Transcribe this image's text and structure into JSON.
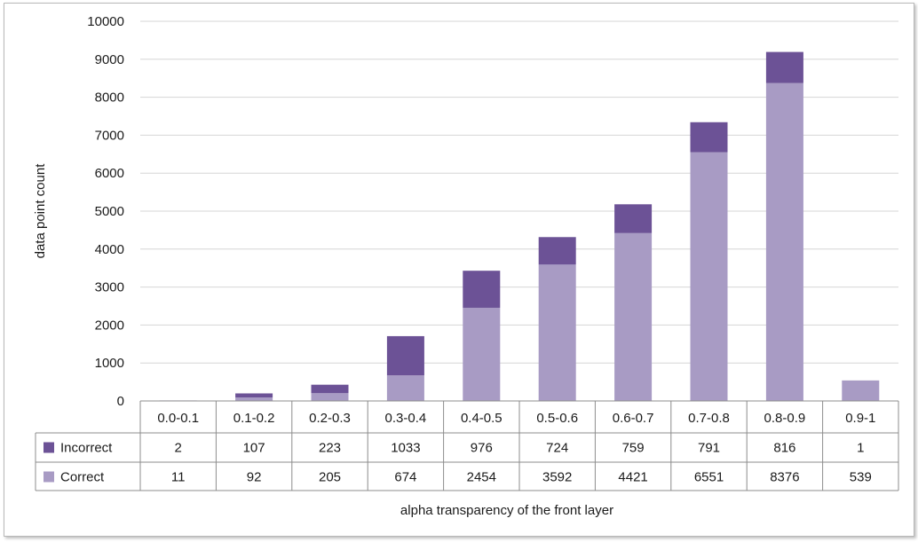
{
  "chart_data": {
    "type": "bar",
    "stacked": true,
    "categories": [
      "0.0-0.1",
      "0.1-0.2",
      "0.2-0.3",
      "0.3-0.4",
      "0.4-0.5",
      "0.5-0.6",
      "0.6-0.7",
      "0.7-0.8",
      "0.8-0.9",
      "0.9-1"
    ],
    "series": [
      {
        "name": "Correct",
        "values": [
          11,
          92,
          205,
          674,
          2454,
          3592,
          4421,
          6551,
          8376,
          539
        ],
        "color": "#a89bc4"
      },
      {
        "name": "Incorrect",
        "values": [
          2,
          107,
          223,
          1033,
          976,
          724,
          759,
          791,
          816,
          1
        ],
        "color": "#6c5296"
      }
    ],
    "table_rows": [
      "Incorrect",
      "Correct"
    ],
    "xlabel": "alpha transparency of the front layer",
    "ylabel": "data point count",
    "ylim": [
      0,
      10000
    ],
    "yticks": [
      "0",
      "1000",
      "2000",
      "3000",
      "4000",
      "5000",
      "6000",
      "7000",
      "8000",
      "9000",
      "10000"
    ],
    "grid": true,
    "data_table": true
  }
}
